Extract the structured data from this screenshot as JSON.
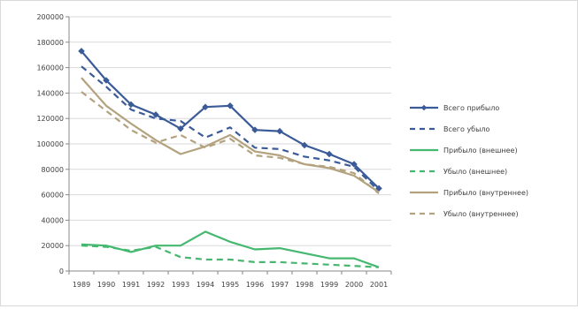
{
  "chart_data": {
    "type": "line",
    "title": "",
    "xlabel": "",
    "ylabel": "",
    "ylim": [
      0,
      200000
    ],
    "yticks": [
      0,
      20000,
      40000,
      60000,
      80000,
      100000,
      120000,
      140000,
      160000,
      180000,
      200000
    ],
    "ytick_labels": [
      "0",
      "20000",
      "40000",
      "60000",
      "80000",
      "100000",
      "120000",
      "140000",
      "160000",
      "180000",
      "200000"
    ],
    "categories": [
      "1989",
      "1990",
      "1991",
      "1992",
      "1993",
      "1994",
      "1995",
      "1996",
      "1997",
      "1998",
      "1999",
      "2000",
      "2001"
    ],
    "grid": "horizontal",
    "legend_position": "right",
    "series": [
      {
        "name": "Всего прибыло",
        "color": "#3a5a98",
        "dash": "solid",
        "marker": "diamond",
        "values": [
          173000,
          150000,
          131000,
          123000,
          112000,
          129000,
          130000,
          111000,
          110000,
          99000,
          92000,
          84000,
          65000
        ]
      },
      {
        "name": "Всего убыло",
        "color": "#3a5a98",
        "dash": "dashed",
        "marker": "none",
        "values": [
          161000,
          145000,
          127000,
          120000,
          118000,
          105000,
          113000,
          97000,
          96000,
          90000,
          87000,
          82000,
          63000
        ]
      },
      {
        "name": "Прибыло (внешнее)",
        "color": "#44b86f",
        "dash": "solid",
        "marker": "none",
        "values": [
          21000,
          20000,
          15000,
          20000,
          20000,
          31000,
          23000,
          17000,
          18000,
          14000,
          10000,
          10000,
          3000
        ]
      },
      {
        "name": "Убыло (внешнее)",
        "color": "#44b86f",
        "dash": "dashed",
        "marker": "none",
        "values": [
          20000,
          19000,
          16000,
          19000,
          11000,
          9000,
          9000,
          7000,
          7000,
          6000,
          5000,
          4000,
          3000
        ]
      },
      {
        "name": "Прибыло (внутреннее)",
        "color": "#b3a27e",
        "dash": "solid",
        "marker": "none",
        "values": [
          152000,
          130000,
          116000,
          103000,
          92000,
          98000,
          107000,
          94000,
          91000,
          84000,
          81000,
          75000,
          62000
        ]
      },
      {
        "name": "Убыло (внутреннее)",
        "color": "#b3a27e",
        "dash": "dashed",
        "marker": "none",
        "values": [
          141000,
          126000,
          111000,
          101000,
          107000,
          97000,
          104000,
          91000,
          89000,
          84000,
          82000,
          77000,
          61000
        ]
      }
    ]
  }
}
